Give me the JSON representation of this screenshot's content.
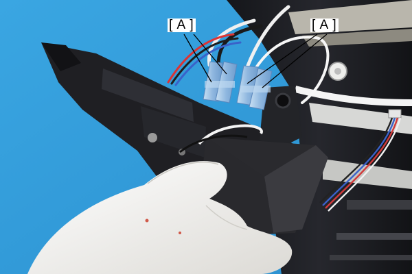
{
  "photo": {
    "subject": "printer-part-removal",
    "colors": {
      "background": "#2f9bd9",
      "frame": "#1c1d22",
      "foam": "#2a2a2e",
      "glove": "#f2f1ee",
      "terminal": "#9fc3e6"
    }
  },
  "callouts": [
    {
      "label": "[ A ]"
    },
    {
      "label": "[ A ]"
    }
  ]
}
